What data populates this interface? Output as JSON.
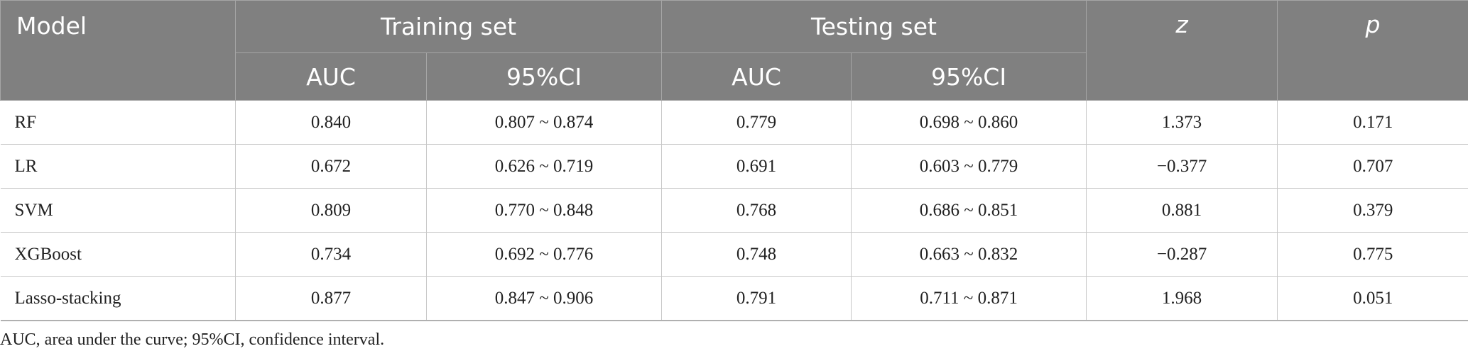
{
  "table": {
    "header": {
      "model": "Model",
      "training": "Training set",
      "testing": "Testing set",
      "z": "z",
      "p": "p",
      "sub": [
        "AUC",
        "95%CI",
        "AUC",
        "95%CI"
      ]
    },
    "rows": [
      [
        "RF",
        "0.840",
        "0.807 ~ 0.874",
        "0.779",
        "0.698 ~ 0.860",
        "1.373",
        "0.171"
      ],
      [
        "LR",
        "0.672",
        "0.626 ~ 0.719",
        "0.691",
        "0.603 ~ 0.779",
        "−0.377",
        "0.707"
      ],
      [
        "SVM",
        "0.809",
        "0.770 ~ 0.848",
        "0.768",
        "0.686 ~ 0.851",
        "0.881",
        "0.379"
      ],
      [
        "XGBoost",
        "0.734",
        "0.692 ~ 0.776",
        "0.748",
        "0.663 ~ 0.832",
        "−0.287",
        "0.775"
      ],
      [
        "Lasso-stacking",
        "0.877",
        "0.847 ~ 0.906",
        "0.791",
        "0.711 ~ 0.871",
        "1.968",
        "0.051"
      ]
    ]
  },
  "footnote": "AUC, area under the curve; 95%CI, confidence interval."
}
